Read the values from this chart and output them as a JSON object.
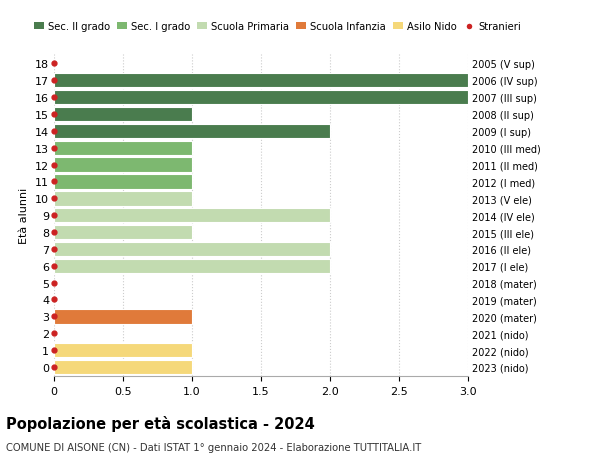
{
  "ages": [
    18,
    17,
    16,
    15,
    14,
    13,
    12,
    11,
    10,
    9,
    8,
    7,
    6,
    5,
    4,
    3,
    2,
    1,
    0
  ],
  "right_labels": [
    "2005 (V sup)",
    "2006 (IV sup)",
    "2007 (III sup)",
    "2008 (II sup)",
    "2009 (I sup)",
    "2010 (III med)",
    "2011 (II med)",
    "2012 (I med)",
    "2013 (V ele)",
    "2014 (IV ele)",
    "2015 (III ele)",
    "2016 (II ele)",
    "2017 (I ele)",
    "2018 (mater)",
    "2019 (mater)",
    "2020 (mater)",
    "2021 (nido)",
    "2022 (nido)",
    "2023 (nido)"
  ],
  "bar_values": [
    0,
    3,
    3,
    1,
    2,
    1,
    1,
    1,
    1,
    2,
    1,
    2,
    2,
    0,
    0,
    1,
    0,
    1,
    1
  ],
  "bar_colors": [
    "#4a7c4e",
    "#4a7c4e",
    "#4a7c4e",
    "#4a7c4e",
    "#4a7c4e",
    "#7db870",
    "#7db870",
    "#7db870",
    "#c2dbb0",
    "#c2dbb0",
    "#c2dbb0",
    "#c2dbb0",
    "#c2dbb0",
    "#e07a3a",
    "#e07a3a",
    "#e07a3a",
    "#f5d87a",
    "#f5d87a",
    "#f5d87a"
  ],
  "stranieri_dots": [
    18,
    17,
    16,
    15,
    14,
    13,
    12,
    11,
    10,
    9,
    8,
    7,
    6,
    5,
    4,
    3,
    2,
    1,
    0
  ],
  "legend_labels": [
    "Sec. II grado",
    "Sec. I grado",
    "Scuola Primaria",
    "Scuola Infanzia",
    "Asilo Nido",
    "Stranieri"
  ],
  "legend_colors": [
    "#4a7c4e",
    "#7db870",
    "#c2dbb0",
    "#e07a3a",
    "#f5d87a",
    "#cc2222"
  ],
  "xlim": [
    0,
    3.0
  ],
  "xticks": [
    0,
    0.5,
    1.0,
    1.5,
    2.0,
    2.5,
    3.0
  ],
  "xlabel_left": "Età alunni",
  "title": "Popolazione per età scolastica - 2024",
  "subtitle": "COMUNE DI AISONE (CN) - Dati ISTAT 1° gennaio 2024 - Elaborazione TUTTITALIA.IT",
  "bg_color": "#ffffff",
  "grid_color": "#cccccc",
  "bar_edge_color": "#ffffff"
}
